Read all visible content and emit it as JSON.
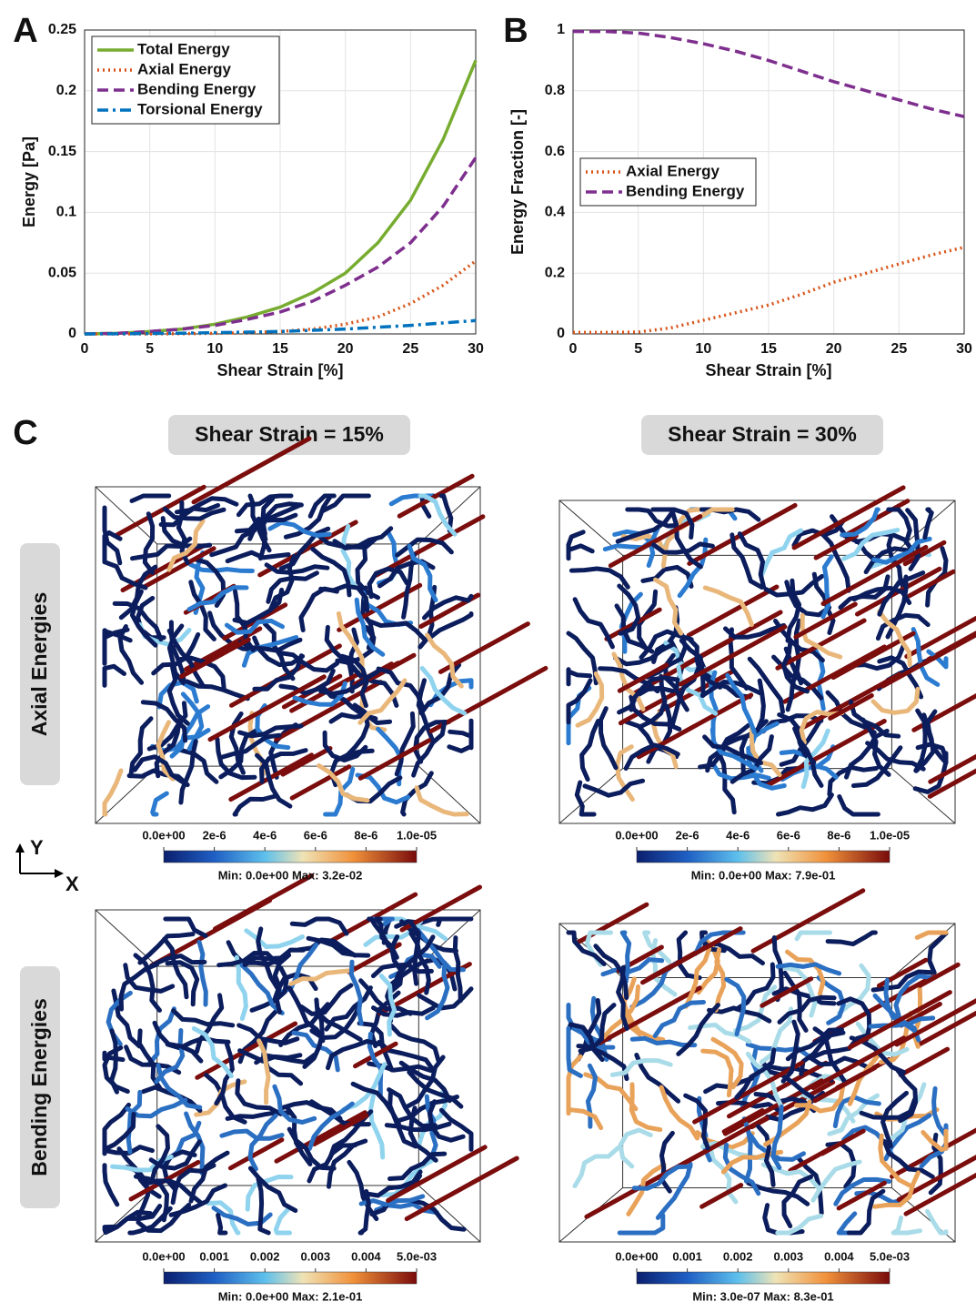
{
  "chart_data": [
    {
      "type": "line",
      "panel": "A",
      "xlabel": "Shear Strain [%]",
      "ylabel": "Energy [Pa]",
      "x": [
        0,
        2.5,
        5,
        7.5,
        10,
        12.5,
        15,
        17.5,
        20,
        22.5,
        25,
        27.5,
        30
      ],
      "xlim": [
        0,
        30
      ],
      "xticks": [
        0,
        5,
        10,
        15,
        20,
        25,
        30
      ],
      "ylim": [
        0,
        0.25
      ],
      "yticks": [
        0,
        0.05,
        0.1,
        0.15,
        0.2,
        0.25
      ],
      "grid": true,
      "legend": "upper left",
      "series": [
        {
          "name": "Total Energy",
          "color": "#77ac30",
          "line_style": "solid",
          "values": [
            0,
            0.0005,
            0.002,
            0.004,
            0.008,
            0.014,
            0.022,
            0.034,
            0.05,
            0.075,
            0.11,
            0.16,
            0.225
          ]
        },
        {
          "name": "Axial Energy",
          "color": "#d95319",
          "line_style": "dotted",
          "values": [
            0,
            0,
            0,
            0.0002,
            0.0005,
            0.001,
            0.002,
            0.004,
            0.008,
            0.014,
            0.025,
            0.04,
            0.06
          ]
        },
        {
          "name": "Bending Energy",
          "color": "#7e2f8e",
          "line_style": "dashed",
          "values": [
            0,
            0.0005,
            0.002,
            0.004,
            0.007,
            0.012,
            0.018,
            0.027,
            0.04,
            0.055,
            0.075,
            0.105,
            0.145
          ]
        },
        {
          "name": "Torsional Energy",
          "color": "#0072bd",
          "line_style": "dashdot",
          "values": [
            0,
            0.0001,
            0.0003,
            0.0006,
            0.001,
            0.0015,
            0.002,
            0.003,
            0.004,
            0.0055,
            0.007,
            0.009,
            0.011
          ]
        }
      ]
    },
    {
      "type": "line",
      "panel": "B",
      "xlabel": "Shear Strain [%]",
      "ylabel": "Energy Fraction [-]",
      "x": [
        0,
        2.5,
        5,
        7.5,
        10,
        12.5,
        15,
        17.5,
        20,
        22.5,
        25,
        27.5,
        30
      ],
      "xlim": [
        0,
        30
      ],
      "xticks": [
        0,
        5,
        10,
        15,
        20,
        25,
        30
      ],
      "ylim": [
        0,
        1
      ],
      "yticks": [
        0,
        0.2,
        0.4,
        0.6,
        0.8,
        1
      ],
      "grid": true,
      "legend": "center left",
      "series": [
        {
          "name": "Axial Energy",
          "color": "#d95319",
          "line_style": "dotted",
          "values": [
            0.005,
            0.005,
            0.006,
            0.02,
            0.045,
            0.07,
            0.095,
            0.13,
            0.17,
            0.2,
            0.23,
            0.26,
            0.285
          ]
        },
        {
          "name": "Bending Energy",
          "color": "#7e2f8e",
          "line_style": "dashed",
          "values": [
            0.995,
            0.995,
            0.99,
            0.975,
            0.955,
            0.93,
            0.9,
            0.865,
            0.83,
            0.8,
            0.77,
            0.74,
            0.715
          ]
        }
      ]
    }
  ],
  "panel_c": {
    "label": "C",
    "columns": [
      "Shear Strain = 15%",
      "Shear Strain = 30%"
    ],
    "rows": [
      "Axial Energies",
      "Bending Energies"
    ],
    "axes": {
      "y": "Y",
      "x": "X"
    },
    "colorbars": [
      {
        "ticks": [
          "0.0e+00",
          "2e-6",
          "4e-6",
          "6e-6",
          "8e-6",
          "1.0e-05"
        ],
        "range": "Min: 0.0e+00  Max: 3.2e-02"
      },
      {
        "ticks": [
          "0.0e+00",
          "2e-6",
          "4e-6",
          "6e-6",
          "8e-6",
          "1.0e-05"
        ],
        "range": "Min: 0.0e+00  Max: 7.9e-01"
      },
      {
        "ticks": [
          "0.0e+00",
          "0.001",
          "0.002",
          "0.003",
          "0.004",
          "5.0e-03"
        ],
        "range": "Min: 0.0e+00  Max: 2.1e-01"
      },
      {
        "ticks": [
          "0.0e+00",
          "0.001",
          "0.002",
          "0.003",
          "0.004",
          "5.0e-03"
        ],
        "range": "Min: 3.0e-07  Max: 8.3e-01"
      }
    ]
  }
}
